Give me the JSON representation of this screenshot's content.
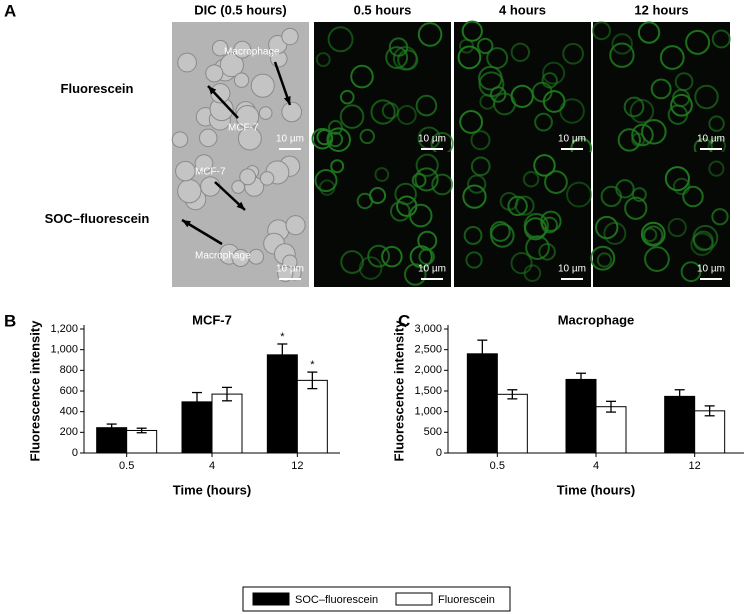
{
  "panel_a": {
    "label": "A",
    "columns": [
      "DIC (0.5 hours)",
      "0.5 hours",
      "4 hours",
      "12 hours"
    ],
    "rows": [
      "Fluorescein",
      "SOC–fluorescein"
    ],
    "macrophage": "Macrophage",
    "mcf7": "MCF-7",
    "scale": "10 µm"
  },
  "panel_labels": [
    "B",
    "C"
  ],
  "chart_data": [
    {
      "type": "bar",
      "title": "MCF-7",
      "x_label": "Time (hours)",
      "y_label": "Fluorescence intensity",
      "categories": [
        "0.5",
        "4",
        "12"
      ],
      "series": [
        {
          "name": "SOC–fluorescein",
          "color": "#000000",
          "values": [
            245,
            495,
            950
          ],
          "errors": [
            35,
            90,
            105
          ]
        },
        {
          "name": "Fluorescein",
          "color": "#ffffff",
          "values": [
            218,
            570,
            703
          ],
          "errors": [
            22,
            65,
            80
          ]
        }
      ],
      "annotations": [
        "*",
        "*"
      ],
      "ylim": [
        0,
        1200
      ],
      "yticks": [
        0,
        200,
        400,
        600,
        800,
        {
          "value": 1000,
          "label": "1,000"
        },
        {
          "value": 1200,
          "label": "1,200"
        }
      ]
    },
    {
      "type": "bar",
      "title": "Macrophage",
      "x_label": "Time (hours)",
      "y_label": "Fluorescence intensity",
      "categories": [
        "0.5",
        "4",
        "12"
      ],
      "series": [
        {
          "name": "SOC–fluorescein",
          "color": "#000000",
          "values": [
            2400,
            1780,
            1370
          ],
          "errors": [
            330,
            150,
            160
          ]
        },
        {
          "name": "Fluorescein",
          "color": "#ffffff",
          "values": [
            1420,
            1120,
            1020
          ],
          "errors": [
            110,
            130,
            120
          ]
        }
      ],
      "ylim": [
        0,
        3000
      ],
      "yticks": [
        0,
        500,
        {
          "value": 1000,
          "label": "1,000"
        },
        {
          "value": 1500,
          "label": "1,500"
        },
        {
          "value": 2000,
          "label": "2,000"
        },
        {
          "value": 2500,
          "label": "2,500"
        },
        {
          "value": 3000,
          "label": "3,000"
        }
      ]
    }
  ]
}
